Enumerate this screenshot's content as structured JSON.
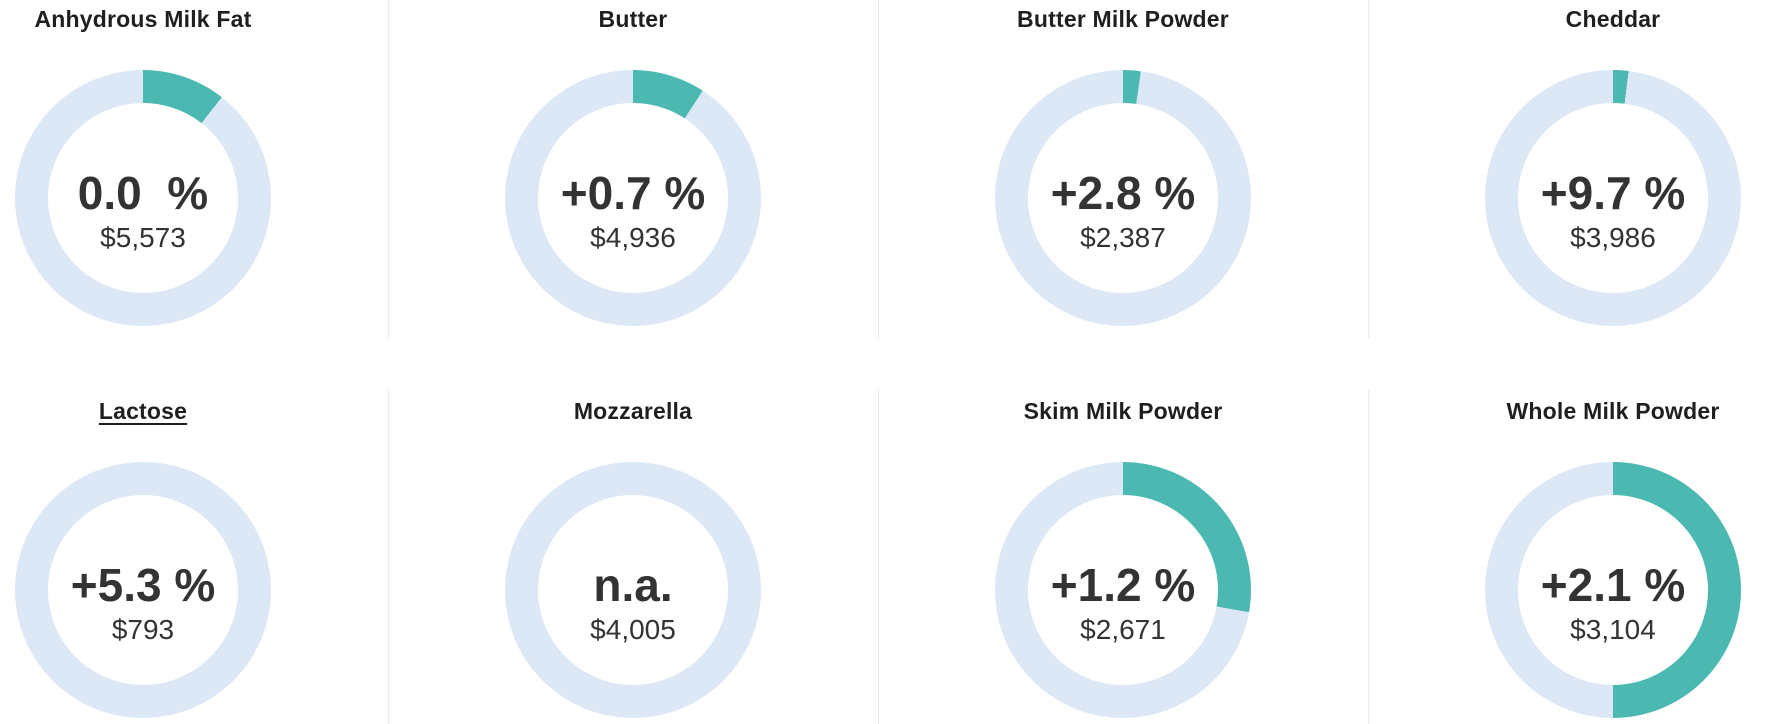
{
  "page": {
    "description": "Dairy product price-change donut gauges, 2 rows x 4 columns"
  },
  "colors": {
    "arc_accent": "#4CB8B2",
    "arc_track": "#DCE8F6",
    "title_text": "#1F1F1F",
    "value_text": "#333333",
    "divider": "#ECECEC",
    "background": "#FFFFFF"
  },
  "chart_data": {
    "type": "pie",
    "variant": "donut-gauge-grid",
    "layout": {
      "rows": 2,
      "columns": 4,
      "arc_start": "top",
      "arc_direction": "clockwise"
    },
    "legend": "none",
    "gauges": [
      {
        "title": "Anhydrous Milk Fat",
        "change_display": "0.0  %",
        "change_pct": 0.0,
        "price_display": "$5,573",
        "price_usd": 5573,
        "arc_deg": 38,
        "arc_fraction": 0.105,
        "underlined": false
      },
      {
        "title": "Butter",
        "change_display": "+0.7 %",
        "change_pct": 0.7,
        "price_display": "$4,936",
        "price_usd": 4936,
        "arc_deg": 33,
        "arc_fraction": 0.092,
        "underlined": false
      },
      {
        "title": "Butter Milk Powder",
        "change_display": "+2.8 %",
        "change_pct": 2.8,
        "price_display": "$2,387",
        "price_usd": 2387,
        "arc_deg": 8,
        "arc_fraction": 0.022,
        "underlined": false
      },
      {
        "title": "Cheddar",
        "change_display": "+9.7 %",
        "change_pct": 9.7,
        "price_display": "$3,986",
        "price_usd": 3986,
        "arc_deg": 7,
        "arc_fraction": 0.019,
        "underlined": false
      },
      {
        "title": "Lactose",
        "change_display": "+5.3 %",
        "change_pct": 5.3,
        "price_display": "$793",
        "price_usd": 793,
        "arc_deg": 0,
        "arc_fraction": 0.0,
        "underlined": true
      },
      {
        "title": "Mozzarella",
        "change_display": "n.a.",
        "change_pct": null,
        "price_display": "$4,005",
        "price_usd": 4005,
        "arc_deg": 0,
        "arc_fraction": 0.0,
        "underlined": false
      },
      {
        "title": "Skim Milk Powder",
        "change_display": "+1.2 %",
        "change_pct": 1.2,
        "price_display": "$2,671",
        "price_usd": 2671,
        "arc_deg": 100,
        "arc_fraction": 0.278,
        "underlined": false
      },
      {
        "title": "Whole Milk Powder",
        "change_display": "+2.1 %",
        "change_pct": 2.1,
        "price_display": "$3,104",
        "price_usd": 3104,
        "arc_deg": 180,
        "arc_fraction": 0.5,
        "underlined": false
      }
    ]
  }
}
